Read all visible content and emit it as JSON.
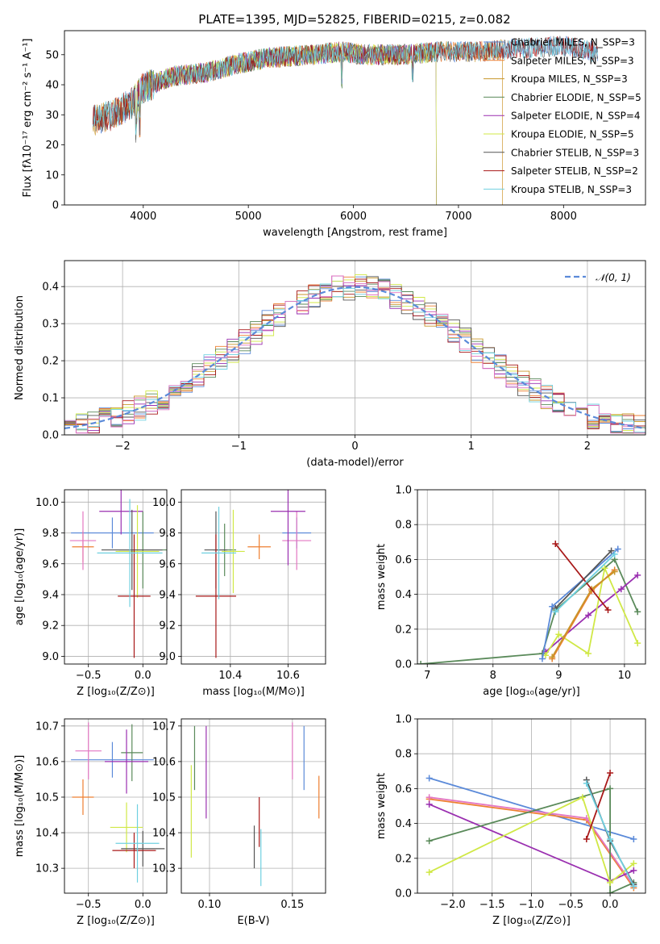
{
  "title": "PLATE=1395, MJD=52825, FIBERID=0215, z=0.082",
  "colors": {
    "chabrier_miles": "#5b8ad9",
    "salpeter_miles": "#ee7f30",
    "kroupa_miles": "#c8962a",
    "chabrier_elodie": "#5a8a5a",
    "salpeter_elodie": "#9a2fb0",
    "kroupa_elodie": "#d0e846",
    "chabrier_stelib": "#555555",
    "salpeter_stelib": "#a81818",
    "kroupa_stelib": "#6fd0e0",
    "pink": "#e377c2",
    "normal_curve": "#5b8ad9",
    "grid": "#b0b0b0"
  },
  "chart_data": [
    {
      "type": "line",
      "id": "spectrum",
      "xlabel": "wavelength [Angstrom, rest frame]",
      "ylabel": "Flux [fλ10⁻¹⁷ erg cm⁻² s⁻¹ A⁻¹]",
      "xlim": [
        3250,
        8780
      ],
      "ylim": [
        0,
        58
      ],
      "xticks": [
        "4000",
        "5000",
        "6000",
        "7000",
        "8000"
      ],
      "yticks": [
        "0",
        "10",
        "20",
        "30",
        "40",
        "50"
      ],
      "grid": false,
      "legend": "top-right",
      "continuum": [
        [
          3520,
          28
        ],
        [
          3700,
          30
        ],
        [
          3900,
          34
        ],
        [
          4000,
          39
        ],
        [
          4300,
          43
        ],
        [
          4600,
          44
        ],
        [
          4900,
          47
        ],
        [
          5200,
          49
        ],
        [
          5600,
          50
        ],
        [
          5900,
          51
        ],
        [
          6100,
          50
        ],
        [
          6500,
          50
        ],
        [
          6800,
          51
        ],
        [
          7200,
          51
        ],
        [
          7600,
          52
        ],
        [
          8000,
          53
        ],
        [
          8300,
          51
        ]
      ],
      "series": [
        {
          "name": "Chabrier MILES, N_SSP=3",
          "color_key": "chabrier_miles",
          "range": [
            3520,
            8330
          ]
        },
        {
          "name": "Salpeter MILES, N_SSP=3",
          "color_key": "salpeter_miles",
          "range": [
            3520,
            7420
          ]
        },
        {
          "name": "Kroupa MILES, N_SSP=3",
          "color_key": "kroupa_miles",
          "range": [
            3520,
            7420
          ]
        },
        {
          "name": "Chabrier ELODIE, N_SSP=5",
          "color_key": "chabrier_elodie",
          "range": [
            3900,
            6790
          ]
        },
        {
          "name": "Salpeter ELODIE, N_SSP=4",
          "color_key": "salpeter_elodie",
          "range": [
            3900,
            6790
          ]
        },
        {
          "name": "Kroupa ELODIE, N_SSP=5",
          "color_key": "kroupa_elodie",
          "range": [
            3900,
            6790
          ]
        },
        {
          "name": "Chabrier STELIB, N_SSP=3",
          "color_key": "chabrier_stelib",
          "range": [
            3520,
            8330
          ]
        },
        {
          "name": "Salpeter STELIB, N_SSP=2",
          "color_key": "salpeter_stelib",
          "range": [
            3520,
            8330
          ]
        },
        {
          "name": "Kroupa STELIB, N_SSP=3",
          "color_key": "kroupa_stelib",
          "range": [
            3520,
            8330
          ]
        }
      ]
    },
    {
      "type": "line",
      "id": "residuals",
      "xlabel": "(data-model)/error",
      "ylabel": "Normed distribution",
      "xlim": [
        -2.5,
        2.5
      ],
      "ylim": [
        0,
        0.47
      ],
      "xticks": [
        "−2",
        "−1",
        "0",
        "1",
        "2"
      ],
      "yticks": [
        "0.0",
        "0.1",
        "0.2",
        "0.3",
        "0.4"
      ],
      "grid": true,
      "legend": "top-right",
      "legend_label": "𝒩(0, 1)",
      "bin_width": 0.1
    },
    {
      "type": "scatter",
      "id": "age_vs_Z",
      "xlabel": "Z [log₁₀(Z/Z⊙)]",
      "ylabel": "age  [log₁₀(age/yr)]",
      "xlim": [
        -0.72,
        0.22
      ],
      "ylim": [
        8.95,
        10.08
      ],
      "xticks": [
        "−0.5",
        "0.0"
      ],
      "yticks": [
        "9.0",
        "9.2",
        "9.4",
        "9.6",
        "9.8",
        "10.0"
      ],
      "points": [
        {
          "c": "chabrier_miles",
          "x": -0.28,
          "xe": 0.38,
          "y": 9.8,
          "ye": 0.1
        },
        {
          "c": "salpeter_miles",
          "x": -0.55,
          "xe": 0.1,
          "y": 9.71,
          "ye": 0.1
        },
        {
          "c": "pink",
          "x": -0.55,
          "xe": 0.12,
          "y": 9.75,
          "ye": 0.19
        },
        {
          "c": "chabrier_elodie",
          "x": 0.0,
          "xe": 0.22,
          "y": 9.69,
          "ye": 0.25
        },
        {
          "c": "salpeter_elodie",
          "x": -0.2,
          "xe": 0.2,
          "y": 9.94,
          "ye": 0.15
        },
        {
          "c": "kroupa_elodie",
          "x": -0.05,
          "xe": 0.2,
          "y": 9.68,
          "ye": 0.3
        },
        {
          "c": "chabrier_stelib",
          "x": -0.1,
          "xe": 0.28,
          "y": 9.69,
          "ye": 0.26
        },
        {
          "c": "salpeter_stelib",
          "x": -0.08,
          "xe": 0.15,
          "y": 9.39,
          "ye": 0.4
        },
        {
          "c": "kroupa_stelib",
          "x": -0.12,
          "xe": 0.3,
          "y": 9.67,
          "ye": 0.35
        }
      ]
    },
    {
      "type": "scatter",
      "id": "age_vs_mass",
      "xlabel": "mass [log₁₀(M/M⊙)]",
      "ylabel": "",
      "xlim": [
        10.23,
        10.73
      ],
      "ylim": [
        8.95,
        10.08
      ],
      "xticks": [
        "10.4",
        "10.6"
      ],
      "yticks": [
        "9.0",
        "9.2",
        "9.4",
        "9.6",
        "9.8",
        "10.0"
      ],
      "points": [
        {
          "c": "chabrier_miles",
          "x": 10.63,
          "xe": 0.05,
          "y": 9.8,
          "ye": 0.1
        },
        {
          "c": "salpeter_miles",
          "x": 10.5,
          "xe": 0.04,
          "y": 9.71,
          "ye": 0.08
        },
        {
          "c": "pink",
          "x": 10.63,
          "xe": 0.05,
          "y": 9.75,
          "ye": 0.19
        },
        {
          "c": "chabrier_elodie",
          "x": 10.38,
          "xe": 0.04,
          "y": 9.69,
          "ye": 0.17
        },
        {
          "c": "salpeter_elodie",
          "x": 10.6,
          "xe": 0.06,
          "y": 9.94,
          "ye": 0.35
        },
        {
          "c": "kroupa_elodie",
          "x": 10.41,
          "xe": 0.04,
          "y": 9.68,
          "ye": 0.27
        },
        {
          "c": "chabrier_stelib",
          "x": 10.35,
          "xe": 0.04,
          "y": 9.69,
          "ye": 0.25
        },
        {
          "c": "salpeter_stelib",
          "x": 10.35,
          "xe": 0.07,
          "y": 9.39,
          "ye": 0.4
        },
        {
          "c": "kroupa_stelib",
          "x": 10.36,
          "xe": 0.06,
          "y": 9.67,
          "ye": 0.3
        }
      ]
    },
    {
      "type": "line",
      "id": "weight_vs_age",
      "xlabel": "age  [log₁₀(age/yr)]",
      "ylabel": "mass weight",
      "xlim": [
        6.85,
        10.32
      ],
      "ylim": [
        0,
        1.0
      ],
      "xticks": [
        "7",
        "8",
        "9",
        "10"
      ],
      "yticks": [
        "0.0",
        "0.2",
        "0.4",
        "0.6",
        "0.8",
        "1.0"
      ],
      "grid": true,
      "series": [
        {
          "c": "chabrier_elodie",
          "pts": [
            [
              6.9,
              0.0
            ],
            [
              8.75,
              0.06
            ],
            [
              8.95,
              0.31
            ],
            [
              9.85,
              0.6
            ],
            [
              10.2,
              0.3
            ]
          ]
        },
        {
          "c": "salpeter_elodie",
          "pts": [
            [
              8.8,
              0.07
            ],
            [
              9.45,
              0.28
            ],
            [
              9.95,
              0.43
            ],
            [
              10.2,
              0.51
            ]
          ]
        },
        {
          "c": "kroupa_elodie",
          "pts": [
            [
              8.8,
              0.05
            ],
            [
              9.0,
              0.17
            ],
            [
              9.45,
              0.06
            ],
            [
              9.7,
              0.55
            ],
            [
              10.2,
              0.12
            ]
          ]
        },
        {
          "c": "chabrier_miles",
          "pts": [
            [
              8.75,
              0.03
            ],
            [
              8.9,
              0.33
            ],
            [
              9.9,
              0.66
            ]
          ]
        },
        {
          "c": "salpeter_miles",
          "pts": [
            [
              8.9,
              0.03
            ],
            [
              9.5,
              0.42
            ],
            [
              9.85,
              0.54
            ]
          ]
        },
        {
          "c": "kroupa_miles",
          "pts": [
            [
              8.9,
              0.04
            ],
            [
              9.5,
              0.43
            ],
            [
              9.85,
              0.53
            ]
          ]
        },
        {
          "c": "chabrier_stelib",
          "pts": [
            [
              8.95,
              0.32
            ],
            [
              9.8,
              0.65
            ]
          ]
        },
        {
          "c": "salpeter_stelib",
          "pts": [
            [
              8.95,
              0.69
            ],
            [
              9.75,
              0.31
            ]
          ]
        },
        {
          "c": "kroupa_stelib",
          "pts": [
            [
              8.95,
              0.3
            ],
            [
              9.85,
              0.63
            ]
          ]
        }
      ]
    },
    {
      "type": "scatter",
      "id": "mass_vs_Z",
      "xlabel": "Z [log₁₀(Z/Z⊙)]",
      "ylabel": "mass [log₁₀(M/M⊙)]",
      "xlim": [
        -0.72,
        0.22
      ],
      "ylim": [
        10.23,
        10.72
      ],
      "xticks": [
        "−0.5",
        "0.0"
      ],
      "yticks": [
        "10.3",
        "10.4",
        "10.5",
        "10.6",
        "10.7"
      ],
      "points": [
        {
          "c": "chabrier_miles",
          "x": -0.28,
          "xe": 0.38,
          "y": 10.605,
          "ye": 0.05
        },
        {
          "c": "salpeter_miles",
          "x": -0.55,
          "xe": 0.1,
          "y": 10.5,
          "ye": 0.05
        },
        {
          "c": "pink",
          "x": -0.5,
          "xe": 0.12,
          "y": 10.63,
          "ye": 0.08
        },
        {
          "c": "chabrier_elodie",
          "x": -0.1,
          "xe": 0.1,
          "y": 10.625,
          "ye": 0.08
        },
        {
          "c": "salpeter_elodie",
          "x": -0.15,
          "xe": 0.2,
          "y": 10.6,
          "ye": 0.09
        },
        {
          "c": "kroupa_elodie",
          "x": -0.15,
          "xe": 0.15,
          "y": 10.415,
          "ye": 0.07
        },
        {
          "c": "chabrier_stelib",
          "x": 0.0,
          "xe": 0.2,
          "y": 10.355,
          "ye": 0.05
        },
        {
          "c": "salpeter_stelib",
          "x": -0.08,
          "xe": 0.2,
          "y": 10.35,
          "ye": 0.05
        },
        {
          "c": "kroupa_stelib",
          "x": -0.05,
          "xe": 0.2,
          "y": 10.37,
          "ye": 0.11
        }
      ]
    },
    {
      "type": "scatter",
      "id": "mass_vs_ebv",
      "xlabel": "E(B-V)",
      "ylabel": "",
      "xlim": [
        0.083,
        0.17
      ],
      "ylim": [
        10.23,
        10.72
      ],
      "xticks": [
        "0.10",
        "0.15"
      ],
      "yticks": [
        "10.3",
        "10.4",
        "10.5",
        "10.6",
        "10.7"
      ],
      "points": [
        {
          "c": "kroupa_elodie",
          "x": 0.089,
          "xe": 0.0,
          "y": 10.46,
          "ye": 0.13
        },
        {
          "c": "chabrier_elodie",
          "x": 0.091,
          "xe": 0.0,
          "y": 10.61,
          "ye": 0.09
        },
        {
          "c": "salpeter_elodie",
          "x": 0.098,
          "xe": 0.0,
          "y": 10.57,
          "ye": 0.13
        },
        {
          "c": "chabrier_stelib",
          "x": 0.127,
          "xe": 0.0,
          "y": 10.36,
          "ye": 0.06
        },
        {
          "c": "salpeter_stelib",
          "x": 0.13,
          "xe": 0.0,
          "y": 10.43,
          "ye": 0.07
        },
        {
          "c": "kroupa_stelib",
          "x": 0.131,
          "xe": 0.0,
          "y": 10.33,
          "ye": 0.08
        },
        {
          "c": "pink",
          "x": 0.15,
          "xe": 0.0,
          "y": 10.63,
          "ye": 0.08
        },
        {
          "c": "chabrier_miles",
          "x": 0.157,
          "xe": 0.0,
          "y": 10.61,
          "ye": 0.09
        },
        {
          "c": "salpeter_miles",
          "x": 0.166,
          "xe": 0.0,
          "y": 10.5,
          "ye": 0.06
        }
      ]
    },
    {
      "type": "line",
      "id": "weight_vs_Z",
      "xlabel": "Z [log₁₀(Z/Z⊙)]",
      "ylabel": "mass weight",
      "xlim": [
        -2.45,
        0.45
      ],
      "ylim": [
        0,
        1.0
      ],
      "xticks": [
        "−2.0",
        "−1.5",
        "−1.0",
        "−0.5",
        "0.0"
      ],
      "yticks": [
        "0.0",
        "0.2",
        "0.4",
        "0.6",
        "0.8",
        "1.0"
      ],
      "grid": true,
      "series": [
        {
          "c": "chabrier_miles",
          "pts": [
            [
              -2.3,
              0.66
            ],
            [
              0.3,
              0.31
            ]
          ]
        },
        {
          "c": "salpeter_miles",
          "pts": [
            [
              -2.3,
              0.54
            ],
            [
              -0.3,
              0.42
            ],
            [
              0.3,
              0.03
            ]
          ]
        },
        {
          "c": "pink",
          "pts": [
            [
              -2.3,
              0.55
            ],
            [
              -0.3,
              0.43
            ],
            [
              0.3,
              0.04
            ]
          ]
        },
        {
          "c": "salpeter_elodie",
          "pts": [
            [
              -2.3,
              0.51
            ],
            [
              0.0,
              0.07
            ],
            [
              0.3,
              0.13
            ]
          ]
        },
        {
          "c": "chabrier_elodie",
          "pts": [
            [
              -2.3,
              0.3
            ],
            [
              0.0,
              0.6
            ],
            [
              0.0,
              0.0
            ],
            [
              0.3,
              0.06
            ]
          ]
        },
        {
          "c": "kroupa_elodie",
          "pts": [
            [
              -2.3,
              0.12
            ],
            [
              -0.35,
              0.55
            ],
            [
              0.0,
              0.06
            ],
            [
              0.3,
              0.17
            ]
          ]
        },
        {
          "c": "chabrier_stelib",
          "pts": [
            [
              -0.3,
              0.65
            ],
            [
              0.0,
              0.3
            ],
            [
              0.3,
              0.05
            ]
          ]
        },
        {
          "c": "salpeter_stelib",
          "pts": [
            [
              0.0,
              0.69
            ],
            [
              -0.3,
              0.31
            ]
          ]
        },
        {
          "c": "kroupa_stelib",
          "pts": [
            [
              -0.3,
              0.63
            ],
            [
              0.0,
              0.31
            ],
            [
              0.3,
              0.04
            ]
          ]
        }
      ]
    }
  ]
}
